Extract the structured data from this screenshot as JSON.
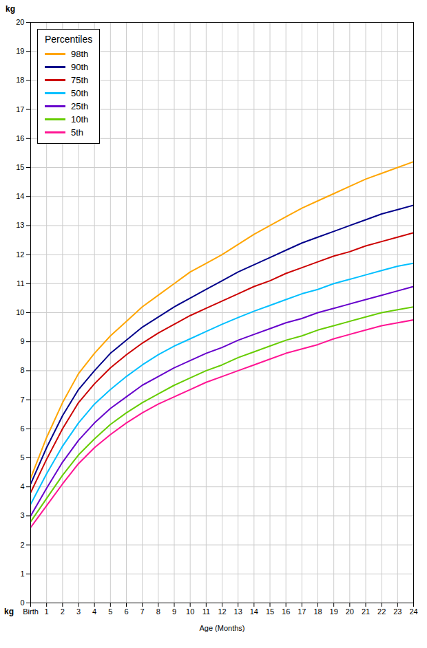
{
  "chart_data": {
    "type": "line",
    "x_label": "Age (Months)",
    "y_label": "kg",
    "annotations": [
      "kg"
    ],
    "legend_title": "Percentiles",
    "legend": "upper left",
    "grid": true,
    "xlim": [
      0,
      24
    ],
    "ylim": [
      0,
      20
    ],
    "xticks": [
      {
        "value": 0,
        "label": "Birth"
      },
      1,
      2,
      3,
      4,
      5,
      6,
      7,
      8,
      9,
      10,
      11,
      12,
      13,
      14,
      15,
      16,
      17,
      18,
      19,
      20,
      21,
      22,
      23,
      24
    ],
    "yticks": [
      0,
      1,
      2,
      3,
      4,
      5,
      6,
      7,
      8,
      9,
      10,
      11,
      12,
      13,
      14,
      15,
      16,
      17,
      18,
      19,
      20
    ],
    "x": [
      0,
      1,
      2,
      3,
      4,
      5,
      6,
      7,
      8,
      9,
      10,
      11,
      12,
      13,
      14,
      15,
      16,
      17,
      18,
      19,
      20,
      21,
      22,
      23,
      24
    ],
    "series": [
      {
        "name": "98th",
        "color": "#FFA500",
        "values": [
          4.3,
          5.7,
          6.9,
          7.9,
          8.6,
          9.2,
          9.7,
          10.2,
          10.6,
          11.0,
          11.4,
          11.7,
          12.0,
          12.35,
          12.7,
          13.0,
          13.3,
          13.6,
          13.85,
          14.1,
          14.35,
          14.6,
          14.8,
          15.0,
          15.2
        ]
      },
      {
        "name": "90th",
        "color": "#00008B",
        "values": [
          4.1,
          5.35,
          6.45,
          7.35,
          8.0,
          8.6,
          9.05,
          9.5,
          9.85,
          10.2,
          10.5,
          10.8,
          11.1,
          11.4,
          11.65,
          11.9,
          12.15,
          12.4,
          12.6,
          12.8,
          13.0,
          13.2,
          13.4,
          13.55,
          13.7
        ]
      },
      {
        "name": "75th",
        "color": "#CC0000",
        "values": [
          3.8,
          4.95,
          6.0,
          6.9,
          7.55,
          8.1,
          8.55,
          8.95,
          9.3,
          9.6,
          9.9,
          10.15,
          10.4,
          10.65,
          10.9,
          11.1,
          11.35,
          11.55,
          11.75,
          11.95,
          12.1,
          12.3,
          12.45,
          12.6,
          12.75
        ]
      },
      {
        "name": "50th",
        "color": "#00BFFF",
        "values": [
          3.4,
          4.45,
          5.4,
          6.2,
          6.85,
          7.35,
          7.8,
          8.2,
          8.55,
          8.85,
          9.1,
          9.35,
          9.6,
          9.83,
          10.05,
          10.25,
          10.45,
          10.65,
          10.8,
          11.0,
          11.15,
          11.3,
          11.45,
          11.6,
          11.7
        ]
      },
      {
        "name": "25th",
        "color": "#6600CC",
        "values": [
          3.0,
          3.95,
          4.85,
          5.6,
          6.2,
          6.7,
          7.1,
          7.5,
          7.8,
          8.1,
          8.35,
          8.6,
          8.8,
          9.05,
          9.25,
          9.45,
          9.65,
          9.8,
          10.0,
          10.15,
          10.3,
          10.45,
          10.6,
          10.75,
          10.9
        ]
      },
      {
        "name": "10th",
        "color": "#66CC00",
        "values": [
          2.8,
          3.6,
          4.4,
          5.1,
          5.65,
          6.15,
          6.55,
          6.9,
          7.2,
          7.5,
          7.75,
          8.0,
          8.2,
          8.45,
          8.65,
          8.85,
          9.05,
          9.2,
          9.4,
          9.55,
          9.7,
          9.85,
          10.0,
          10.1,
          10.2
        ]
      },
      {
        "name": "5th",
        "color": "#FF1493",
        "values": [
          2.6,
          3.35,
          4.1,
          4.8,
          5.35,
          5.8,
          6.2,
          6.55,
          6.85,
          7.1,
          7.35,
          7.6,
          7.8,
          8.0,
          8.2,
          8.4,
          8.6,
          8.75,
          8.9,
          9.1,
          9.25,
          9.4,
          9.55,
          9.65,
          9.75
        ]
      }
    ]
  }
}
